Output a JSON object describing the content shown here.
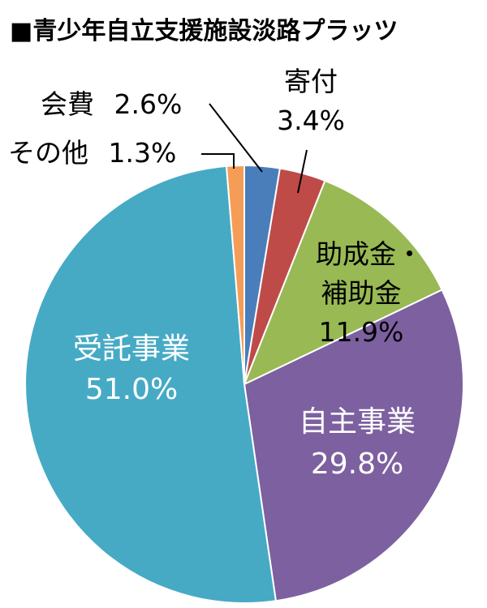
{
  "chart_data": {
    "type": "pie",
    "title": "■青少年自立支援施設淡路プラッツ",
    "start": "top, clockwise",
    "slices": [
      {
        "label": "会費",
        "value": 2.6,
        "value_text": "2.6%",
        "color": "#4a7ebb"
      },
      {
        "label": "寄付",
        "value": 3.4,
        "value_text": "3.4%",
        "color": "#be4b48"
      },
      {
        "label": "助成金・補助金",
        "label_lines": [
          "助成金・",
          "補助金"
        ],
        "value": 11.9,
        "value_text": "11.9%",
        "color": "#98b954"
      },
      {
        "label": "自主事業",
        "value": 29.8,
        "value_text": "29.8%",
        "color": "#7d60a0"
      },
      {
        "label": "受託事業",
        "value": 51.0,
        "value_text": "51.0%",
        "color": "#46aac5"
      },
      {
        "label": "その他",
        "value": 1.3,
        "value_text": "1.3%",
        "color": "#f59d56"
      }
    ]
  }
}
